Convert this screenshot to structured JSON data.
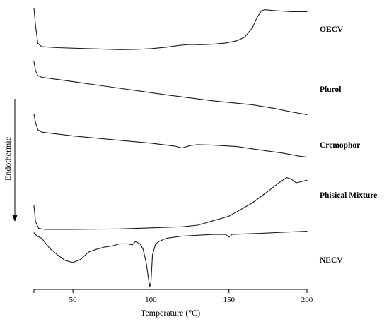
{
  "chart_data": {
    "type": "line",
    "xlabel": "Temperature (°C)",
    "ylabel": "Endothermic",
    "xlim": [
      25,
      200
    ],
    "xticks": [
      50,
      100,
      150,
      200
    ],
    "series": [
      {
        "name": "OECV",
        "points": [
          [
            25,
            0.95
          ],
          [
            26,
            0.6
          ],
          [
            27.5,
            0.24
          ],
          [
            30,
            0.17
          ],
          [
            40,
            0.15
          ],
          [
            60,
            0.13
          ],
          [
            80,
            0.11
          ],
          [
            90,
            0.115
          ],
          [
            100,
            0.13
          ],
          [
            110,
            0.16
          ],
          [
            118,
            0.195
          ],
          [
            125,
            0.215
          ],
          [
            132,
            0.21
          ],
          [
            140,
            0.22
          ],
          [
            148,
            0.245
          ],
          [
            155,
            0.29
          ],
          [
            160,
            0.36
          ],
          [
            165,
            0.55
          ],
          [
            168,
            0.76
          ],
          [
            171,
            0.9
          ],
          [
            173,
            0.92
          ],
          [
            176,
            0.91
          ],
          [
            180,
            0.9
          ],
          [
            190,
            0.88
          ],
          [
            200,
            0.88
          ]
        ]
      },
      {
        "name": "Plurol",
        "points": [
          [
            25,
            0.98
          ],
          [
            26,
            0.82
          ],
          [
            27.5,
            0.73
          ],
          [
            30,
            0.7
          ],
          [
            50,
            0.62
          ],
          [
            80,
            0.5
          ],
          [
            110,
            0.38
          ],
          [
            140,
            0.27
          ],
          [
            165,
            0.2
          ],
          [
            180,
            0.13
          ],
          [
            190,
            0.07
          ],
          [
            200,
            0.02
          ]
        ]
      },
      {
        "name": "Cremophor",
        "points": [
          [
            25,
            0.98
          ],
          [
            26,
            0.8
          ],
          [
            27.5,
            0.65
          ],
          [
            30,
            0.6
          ],
          [
            50,
            0.52
          ],
          [
            80,
            0.43
          ],
          [
            100,
            0.37
          ],
          [
            115,
            0.31
          ],
          [
            120,
            0.27
          ],
          [
            125,
            0.32
          ],
          [
            130,
            0.34
          ],
          [
            140,
            0.33
          ],
          [
            155,
            0.3
          ],
          [
            170,
            0.23
          ],
          [
            185,
            0.16
          ],
          [
            195,
            0.1
          ],
          [
            200,
            0.08
          ]
        ]
      },
      {
        "name": "Phisical Mixture",
        "points": [
          [
            25,
            0.45
          ],
          [
            26,
            0.15
          ],
          [
            28,
            0.02
          ],
          [
            32,
            0.0
          ],
          [
            50,
            0.0
          ],
          [
            80,
            0.01
          ],
          [
            100,
            0.03
          ],
          [
            120,
            0.05
          ],
          [
            130,
            0.08
          ],
          [
            150,
            0.25
          ],
          [
            165,
            0.5
          ],
          [
            175,
            0.72
          ],
          [
            182,
            0.88
          ],
          [
            187,
            0.98
          ],
          [
            190,
            0.95
          ],
          [
            193,
            0.88
          ],
          [
            196,
            0.9
          ],
          [
            200,
            0.93
          ]
        ]
      },
      {
        "name": "NECV",
        "points": [
          [
            25,
            0.9
          ],
          [
            27,
            0.84
          ],
          [
            30,
            0.8
          ],
          [
            35,
            0.62
          ],
          [
            40,
            0.5
          ],
          [
            45,
            0.4
          ],
          [
            50,
            0.36
          ],
          [
            55,
            0.42
          ],
          [
            60,
            0.55
          ],
          [
            65,
            0.6
          ],
          [
            70,
            0.64
          ],
          [
            75,
            0.66
          ],
          [
            80,
            0.7
          ],
          [
            85,
            0.7
          ],
          [
            88,
            0.68
          ],
          [
            90,
            0.74
          ],
          [
            93,
            0.7
          ],
          [
            95,
            0.6
          ],
          [
            97,
            0.35
          ],
          [
            98.5,
            0.05
          ],
          [
            99.2,
            -0.08
          ],
          [
            100,
            0.0
          ],
          [
            101,
            0.5
          ],
          [
            103,
            0.7
          ],
          [
            105,
            0.74
          ],
          [
            108,
            0.78
          ],
          [
            110,
            0.8
          ],
          [
            120,
            0.84
          ],
          [
            140,
            0.87
          ],
          [
            148,
            0.87
          ],
          [
            150,
            0.82
          ],
          [
            152,
            0.87
          ],
          [
            170,
            0.89
          ],
          [
            185,
            0.91
          ],
          [
            200,
            0.93
          ]
        ]
      }
    ],
    "grid": false,
    "legend": "inline-right"
  }
}
